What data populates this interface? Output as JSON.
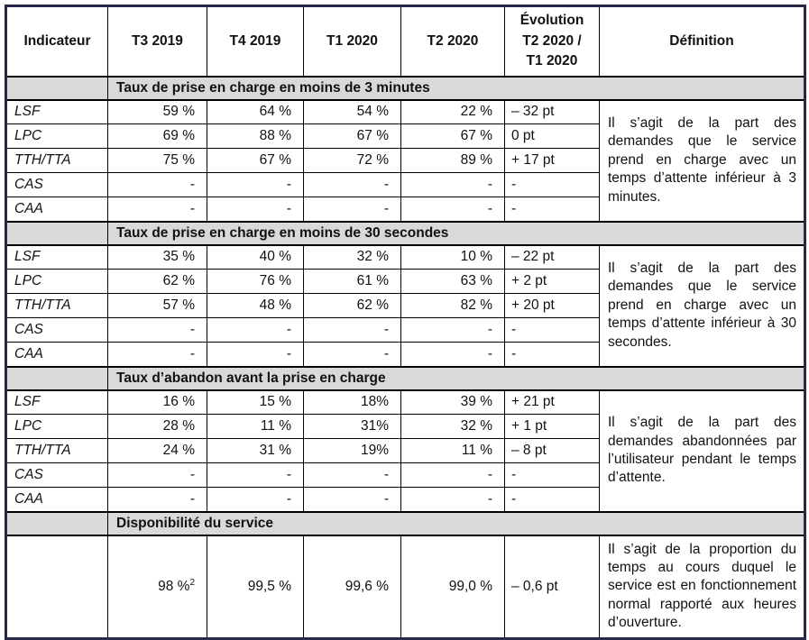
{
  "table": {
    "columns": [
      {
        "label": "Indicateur",
        "lines": [
          "Indicateur"
        ]
      },
      {
        "label": "T3 2019",
        "lines": [
          "T3 2019"
        ]
      },
      {
        "label": "T4 2019",
        "lines": [
          "T4 2019"
        ]
      },
      {
        "label": "T1 2020",
        "lines": [
          "T1 2020"
        ]
      },
      {
        "label": "T2 2020",
        "lines": [
          "T2 2020"
        ]
      },
      {
        "label": "Évolution T2 2020 / T1 2020",
        "lines": [
          "Évolution",
          "T2 2020 /",
          "T1 2020"
        ]
      },
      {
        "label": "Définition",
        "lines": [
          "Définition"
        ]
      }
    ],
    "sections": [
      {
        "title": "Taux de prise en charge en moins de 3 minutes",
        "definition": "Il s’agit de la part des demandes que le service prend en charge avec un temps d’attente inférieur à 3 minutes.",
        "rows": [
          {
            "label": "LSF",
            "values": [
              "59 %",
              "64 %",
              "54 %",
              "22 %"
            ],
            "evolution": "– 32 pt"
          },
          {
            "label": "LPC",
            "values": [
              "69 %",
              "88 %",
              "67 %",
              "67 %"
            ],
            "evolution": "0 pt"
          },
          {
            "label": "TTH/TTA",
            "values": [
              "75 %",
              "67 %",
              "72 %",
              "89 %"
            ],
            "evolution": "+ 17 pt"
          },
          {
            "label": "CAS",
            "values": [
              "-",
              "-",
              "-",
              "-"
            ],
            "evolution": "-"
          },
          {
            "label": "CAA",
            "values": [
              "-",
              "-",
              "-",
              "-"
            ],
            "evolution": "-"
          }
        ]
      },
      {
        "title": "Taux de prise en charge en moins de 30 secondes",
        "definition": "Il s’agit de la part des demandes que le service prend en charge avec un temps d’attente inférieur à 30 secondes.",
        "rows": [
          {
            "label": "LSF",
            "values": [
              "35 %",
              "40 %",
              "32 %",
              "10 %"
            ],
            "evolution": "– 22 pt"
          },
          {
            "label": "LPC",
            "values": [
              "62 %",
              "76 %",
              "61 %",
              "63 %"
            ],
            "evolution": "+ 2 pt"
          },
          {
            "label": "TTH/TTA",
            "values": [
              "57 %",
              "48 %",
              "62 %",
              "82 %"
            ],
            "evolution": "+ 20 pt"
          },
          {
            "label": "CAS",
            "values": [
              "-",
              "-",
              "-",
              "-"
            ],
            "evolution": "-"
          },
          {
            "label": "CAA",
            "values": [
              "-",
              "-",
              "-",
              "-"
            ],
            "evolution": "-"
          }
        ]
      },
      {
        "title": "Taux d’abandon avant la prise en charge",
        "definition": "Il s’agit de la part des demandes abandonnées par l’utilisateur pendant le temps d’attente.",
        "rows": [
          {
            "label": "LSF",
            "values": [
              "16 %",
              "15 %",
              "18%",
              "39 %"
            ],
            "evolution": "+ 21 pt"
          },
          {
            "label": "LPC",
            "values": [
              "28 %",
              "11 %",
              "31%",
              "32 %"
            ],
            "evolution": "+ 1 pt"
          },
          {
            "label": "TTH/TTA",
            "values": [
              "24 %",
              "31 %",
              "19%",
              "11 %"
            ],
            "evolution": "– 8 pt"
          },
          {
            "label": "CAS",
            "values": [
              "-",
              "-",
              "-",
              "-"
            ],
            "evolution": "-"
          },
          {
            "label": "CAA",
            "values": [
              "-",
              "-",
              "-",
              "-"
            ],
            "evolution": "-"
          }
        ]
      },
      {
        "title": "Disponibilité du service",
        "definition": "Il s’agit de la proportion du temps au cours duquel le service est en fonctionnement normal rapporté aux heures d’ouverture.",
        "rows": [
          {
            "label": "",
            "values": [
              "98 %²",
              "99,5 %",
              "99,6 %",
              "99,0 %"
            ],
            "evolution": "– 0,6 pt",
            "tall": true
          }
        ]
      }
    ]
  }
}
